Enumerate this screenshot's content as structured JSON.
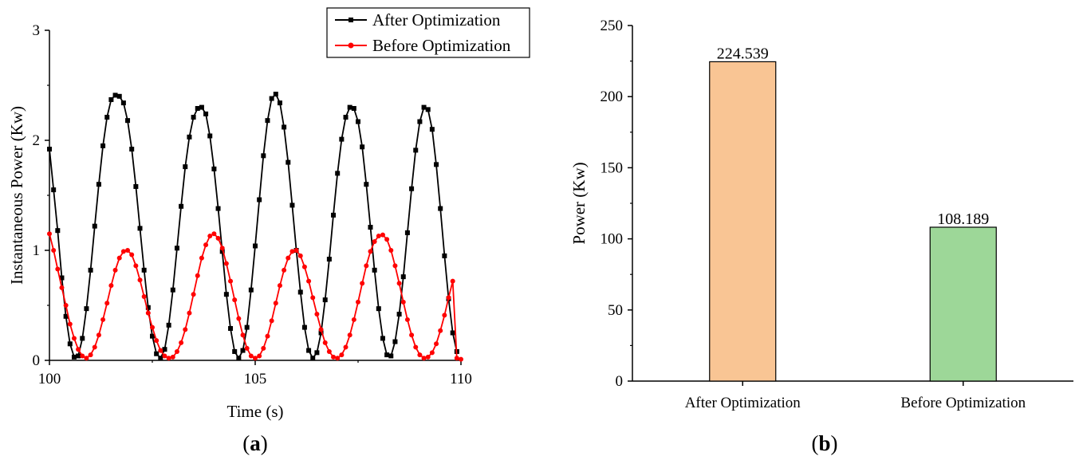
{
  "chart_data": [
    {
      "type": "line",
      "panel_label": "a",
      "xlabel": "Time (s)",
      "ylabel": "Instantaneous Power (Kw)",
      "xlim": [
        100,
        110
      ],
      "ylim": [
        0,
        3
      ],
      "x_ticks": [
        100,
        105,
        110
      ],
      "y_ticks": [
        0,
        1,
        2,
        3
      ],
      "grid": false,
      "legend_position": "top-right",
      "series": [
        {
          "name": "After Optimization",
          "color": "#000000",
          "marker": "square",
          "mean": 1.21,
          "amplitude": 1.19,
          "period": 2.48,
          "peak_time": 101.72,
          "x": [
            100.0,
            100.1,
            100.2,
            100.3,
            100.4,
            100.5,
            100.6,
            100.7,
            100.8,
            100.9,
            101.0,
            101.1,
            101.2,
            101.3,
            101.4,
            101.5,
            101.6,
            101.7,
            101.8,
            101.9,
            102.0,
            102.1,
            102.2,
            102.3,
            102.4,
            102.5,
            102.6,
            102.7,
            102.8,
            102.9,
            103.0,
            103.1,
            103.2,
            103.3,
            103.4,
            103.5,
            103.6,
            103.7,
            103.8,
            103.9,
            104.0,
            104.1,
            104.2,
            104.3,
            104.4,
            104.5,
            104.6,
            104.7,
            104.8,
            104.9,
            105.0,
            105.1,
            105.2,
            105.3,
            105.4,
            105.5,
            105.6,
            105.7,
            105.8,
            105.9,
            106.0,
            106.1,
            106.2,
            106.3,
            106.4,
            106.5,
            106.6,
            106.7,
            106.8,
            106.9,
            107.0,
            107.1,
            107.2,
            107.3,
            107.4,
            107.5,
            107.6,
            107.7,
            107.8,
            107.9,
            108.0,
            108.1,
            108.2,
            108.3,
            108.4,
            108.5,
            108.6,
            108.7,
            108.8,
            108.9,
            109.0,
            109.1,
            109.2,
            109.3,
            109.4,
            109.5,
            109.6,
            109.7,
            109.8,
            109.9
          ],
          "values": [
            1.92,
            1.55,
            1.18,
            0.75,
            0.4,
            0.15,
            0.03,
            0.04,
            0.2,
            0.47,
            0.82,
            1.22,
            1.6,
            1.95,
            2.21,
            2.37,
            2.41,
            2.4,
            2.34,
            2.18,
            1.92,
            1.58,
            1.2,
            0.82,
            0.48,
            0.22,
            0.06,
            0.02,
            0.1,
            0.32,
            0.64,
            1.02,
            1.4,
            1.76,
            2.03,
            2.21,
            2.29,
            2.3,
            2.24,
            2.04,
            1.74,
            1.38,
            0.99,
            0.6,
            0.29,
            0.08,
            0.02,
            0.09,
            0.3,
            0.64,
            1.04,
            1.46,
            1.86,
            2.18,
            2.38,
            2.42,
            2.34,
            2.12,
            1.8,
            1.41,
            1.0,
            0.62,
            0.3,
            0.09,
            0.02,
            0.07,
            0.25,
            0.55,
            0.92,
            1.32,
            1.7,
            2.01,
            2.21,
            2.3,
            2.29,
            2.17,
            1.94,
            1.6,
            1.21,
            0.82,
            0.47,
            0.2,
            0.05,
            0.04,
            0.17,
            0.42,
            0.76,
            1.16,
            1.56,
            1.91,
            2.17,
            2.3,
            2.28,
            2.1,
            1.78,
            1.38,
            0.95,
            0.56,
            0.25,
            0.08
          ]
        },
        {
          "name": "Before Optimization",
          "color": "#ff0000",
          "marker": "circle",
          "x": [
            100.0,
            100.1,
            100.2,
            100.3,
            100.4,
            100.5,
            100.6,
            100.7,
            100.8,
            100.9,
            101.0,
            101.1,
            101.2,
            101.3,
            101.4,
            101.5,
            101.6,
            101.7,
            101.8,
            101.9,
            102.0,
            102.1,
            102.2,
            102.3,
            102.4,
            102.5,
            102.6,
            102.7,
            102.8,
            102.9,
            103.0,
            103.1,
            103.2,
            103.3,
            103.4,
            103.5,
            103.6,
            103.7,
            103.8,
            103.9,
            104.0,
            104.1,
            104.2,
            104.3,
            104.4,
            104.5,
            104.6,
            104.7,
            104.8,
            104.9,
            105.0,
            105.1,
            105.2,
            105.3,
            105.4,
            105.5,
            105.6,
            105.7,
            105.8,
            105.9,
            106.0,
            106.1,
            106.2,
            106.3,
            106.4,
            106.5,
            106.6,
            106.7,
            106.8,
            106.9,
            107.0,
            107.1,
            107.2,
            107.3,
            107.4,
            107.5,
            107.6,
            107.7,
            107.8,
            107.9,
            108.0,
            108.1,
            108.2,
            108.3,
            108.4,
            108.5,
            108.6,
            108.7,
            108.8,
            108.9,
            109.0,
            109.1,
            109.2,
            109.3,
            109.4,
            109.5,
            109.6,
            109.7,
            109.8,
            109.9,
            110.0
          ],
          "values": [
            1.15,
            1.0,
            0.83,
            0.66,
            0.5,
            0.33,
            0.2,
            0.1,
            0.04,
            0.02,
            0.05,
            0.12,
            0.23,
            0.37,
            0.52,
            0.68,
            0.82,
            0.93,
            0.99,
            1.0,
            0.96,
            0.86,
            0.73,
            0.58,
            0.43,
            0.3,
            0.18,
            0.09,
            0.04,
            0.02,
            0.03,
            0.08,
            0.16,
            0.28,
            0.43,
            0.6,
            0.77,
            0.93,
            1.05,
            1.13,
            1.15,
            1.11,
            1.02,
            0.88,
            0.72,
            0.55,
            0.38,
            0.23,
            0.11,
            0.04,
            0.02,
            0.04,
            0.11,
            0.22,
            0.36,
            0.52,
            0.68,
            0.82,
            0.93,
            0.99,
            1.0,
            0.95,
            0.85,
            0.72,
            0.57,
            0.42,
            0.28,
            0.16,
            0.08,
            0.03,
            0.02,
            0.05,
            0.12,
            0.23,
            0.37,
            0.53,
            0.7,
            0.86,
            0.99,
            1.08,
            1.13,
            1.14,
            1.1,
            1.0,
            0.86,
            0.7,
            0.53,
            0.37,
            0.23,
            0.12,
            0.05,
            0.02,
            0.03,
            0.07,
            0.15,
            0.27,
            0.41,
            0.57,
            0.72,
            0.02,
            0.01
          ]
        }
      ]
    },
    {
      "type": "bar",
      "panel_label": "b",
      "xlabel": "",
      "ylabel": "Power (Kw)",
      "ylim": [
        0,
        250
      ],
      "y_ticks": [
        0,
        50,
        100,
        150,
        200,
        250
      ],
      "grid": false,
      "categories": [
        "After Optimization",
        "Before Optimization"
      ],
      "values": [
        224.539,
        108.189
      ],
      "value_labels": [
        "224.539",
        "108.189"
      ],
      "colors": [
        "#f9c594",
        "#9dd798"
      ]
    }
  ]
}
